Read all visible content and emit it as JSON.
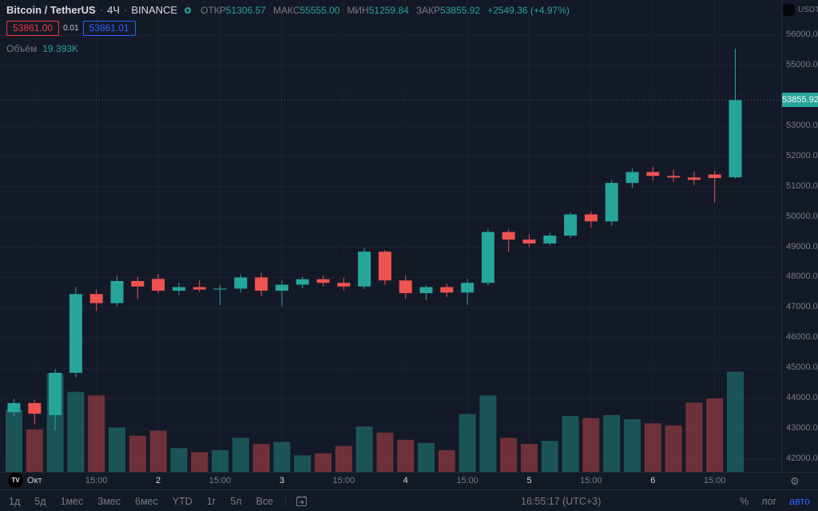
{
  "header": {
    "symbol": "Bitcoin / TetherUS",
    "sep": "·",
    "interval": "4Ч",
    "exchange": "BINANCE",
    "ohlc": {
      "open_label": "ОТКР",
      "open": "51306.57",
      "high_label": "МАКС",
      "high": "55555.00",
      "low_label": "МИН",
      "low": "51259.84",
      "close_label": "ЗАКР",
      "close": "53855.92",
      "change": "+2549.36 (+4.97%)"
    },
    "bid": "53861.00",
    "spread": "0.01",
    "ask": "53861.01",
    "volume_label": "Объём",
    "volume_value": "19.393K"
  },
  "axis": {
    "currency": "USDT",
    "last_price_tag": "53855.92"
  },
  "toolbar": {
    "ranges": [
      "1д",
      "5д",
      "1мес",
      "3мес",
      "6мес",
      "YTD",
      "1г",
      "5л",
      "Все"
    ],
    "clock": "16:55:17 (UTC+3)",
    "percent": "%",
    "log": "лог",
    "auto": "авто"
  },
  "branding": {
    "logo": "TV"
  },
  "icons": {
    "gear": "⚙"
  },
  "colors": {
    "up": "#26a69a",
    "down": "#ef5350",
    "bg": "#141927",
    "accent_blue": "#2962ff",
    "bid_red": "#f23645",
    "text_gray": "#787b86",
    "text_light": "#d1d4dc"
  },
  "chart_data": {
    "type": "candlestick+volume",
    "symbol": "BTCUSDT",
    "exchange": "BINANCE",
    "interval": "4H",
    "y_axis": {
      "min": 42000,
      "max": 56000,
      "step": 1000
    },
    "last_price": 53855.92,
    "volume_max_scale": 20.4,
    "x_ticks": [
      {
        "i": 1,
        "label": "Окт",
        "major": true
      },
      {
        "i": 4,
        "label": "15:00",
        "major": false
      },
      {
        "i": 7,
        "label": "2",
        "major": true
      },
      {
        "i": 10,
        "label": "15:00",
        "major": false
      },
      {
        "i": 13,
        "label": "3",
        "major": true
      },
      {
        "i": 16,
        "label": "15:00",
        "major": false
      },
      {
        "i": 19,
        "label": "4",
        "major": true
      },
      {
        "i": 22,
        "label": "15:00",
        "major": false
      },
      {
        "i": 25,
        "label": "5",
        "major": true
      },
      {
        "i": 28,
        "label": "15:00",
        "major": false
      },
      {
        "i": 31,
        "label": "6",
        "major": true
      },
      {
        "i": 34,
        "label": "15:00",
        "major": false
      }
    ],
    "candles_format": [
      "open",
      "high",
      "low",
      "close",
      "volume_K"
    ],
    "candles": [
      [
        43550,
        43980,
        43400,
        43850,
        12.0
      ],
      [
        43850,
        43950,
        43150,
        43500,
        8.2
      ],
      [
        43450,
        44980,
        42950,
        44850,
        19.0
      ],
      [
        44850,
        47680,
        44700,
        47450,
        15.5
      ],
      [
        47450,
        47600,
        46900,
        47150,
        14.8
      ],
      [
        47150,
        48050,
        47050,
        47880,
        8.6
      ],
      [
        47880,
        48020,
        47300,
        47700,
        7.0
      ],
      [
        47950,
        48120,
        47480,
        47560,
        8.0
      ],
      [
        47560,
        47820,
        47420,
        47680,
        4.6
      ],
      [
        47680,
        47900,
        47520,
        47600,
        3.8
      ],
      [
        47600,
        47750,
        47080,
        47630,
        4.2
      ],
      [
        47630,
        48100,
        47500,
        48000,
        6.6
      ],
      [
        48000,
        48150,
        47380,
        47560,
        5.4
      ],
      [
        47560,
        47900,
        47040,
        47760,
        5.8
      ],
      [
        47760,
        48020,
        47640,
        47940,
        3.2
      ],
      [
        47940,
        48060,
        47700,
        47820,
        3.6
      ],
      [
        47820,
        47980,
        47580,
        47700,
        5.0
      ],
      [
        47700,
        48980,
        47620,
        48850,
        8.8
      ],
      [
        48850,
        48900,
        47750,
        47900,
        7.6
      ],
      [
        47900,
        48050,
        47300,
        47480,
        6.2
      ],
      [
        47480,
        47750,
        47250,
        47680,
        5.6
      ],
      [
        47680,
        47800,
        47350,
        47500,
        4.2
      ],
      [
        47500,
        47950,
        47100,
        47820,
        11.2
      ],
      [
        47820,
        49600,
        47750,
        49500,
        14.8
      ],
      [
        49500,
        49580,
        48850,
        49250,
        6.6
      ],
      [
        49250,
        49420,
        49000,
        49120,
        5.4
      ],
      [
        49120,
        49480,
        49050,
        49380,
        6.0
      ],
      [
        49380,
        50150,
        49300,
        50080,
        10.8
      ],
      [
        50080,
        50180,
        49650,
        49850,
        10.4
      ],
      [
        49850,
        51220,
        49700,
        51120,
        11.0
      ],
      [
        51120,
        51600,
        50950,
        51480,
        10.2
      ],
      [
        51480,
        51650,
        51200,
        51350,
        9.4
      ],
      [
        51350,
        51560,
        51150,
        51300,
        9.0
      ],
      [
        51300,
        51500,
        51050,
        51220,
        13.4
      ],
      [
        51400,
        51520,
        50480,
        51280,
        14.2
      ],
      [
        51306.57,
        55555.0,
        51259.84,
        53855.92,
        19.393
      ]
    ]
  }
}
